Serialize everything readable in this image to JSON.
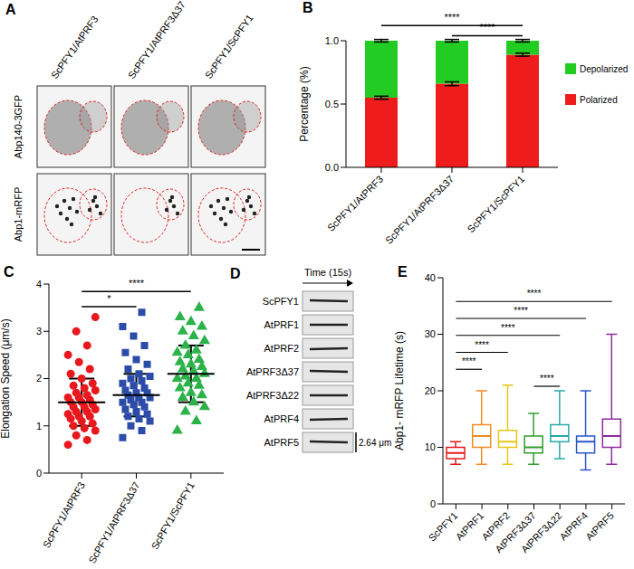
{
  "chart_data": [
    {
      "panel": "B",
      "type": "bar",
      "stacked": true,
      "categories": [
        "ScPFY1/AtPRF3",
        "ScPFY1/AtPRF3Δ37",
        "ScPFY1/ScPFY1"
      ],
      "y_label": "Percentage (%)",
      "ylim": [
        0,
        1
      ],
      "yticks": [
        {
          "value": 0,
          "label": "0.0"
        },
        {
          "value": 0.5,
          "label": "0.5"
        },
        {
          "value": 1,
          "label": "1.0"
        }
      ],
      "series": [
        {
          "name": "Polarized",
          "color": "#ee1c1c",
          "values": [
            0.55,
            0.66,
            0.89
          ],
          "error": [
            0.012,
            0.015,
            0.012
          ]
        },
        {
          "name": "Depolarized",
          "color": "#22cc22",
          "values": [
            0.45,
            0.34,
            0.11
          ],
          "error": [
            0.01,
            0.01,
            0.01
          ]
        }
      ],
      "legend": "right",
      "significance": [
        {
          "from": "ScPFY1/AtPRF3",
          "to": "ScPFY1/ScPFY1",
          "label": "****"
        },
        {
          "from": "ScPFY1/AtPRF3Δ37",
          "to": "ScPFY1/ScPFY1",
          "label": "****"
        }
      ]
    },
    {
      "panel": "C",
      "type": "scatter",
      "categories": [
        "ScPFY1/AtPRF3",
        "ScPFY1/AtPRF3Δ37",
        "ScPFY1/ScPFY1"
      ],
      "y_label": "Elongation Speed (μm/s)",
      "ylim": [
        0,
        4
      ],
      "yticks": [
        0,
        1,
        2,
        3,
        4
      ],
      "groups": [
        {
          "color": "#e8191e",
          "marker": "circle",
          "mean": 1.5,
          "sd": 0.5,
          "values": [
            0.6,
            0.7,
            0.8,
            0.9,
            0.95,
            1.0,
            1.05,
            1.1,
            1.15,
            1.2,
            1.2,
            1.25,
            1.3,
            1.3,
            1.35,
            1.4,
            1.4,
            1.45,
            1.5,
            1.5,
            1.55,
            1.6,
            1.6,
            1.65,
            1.7,
            1.75,
            1.8,
            1.85,
            1.9,
            2.0,
            2.1,
            2.2,
            2.35,
            2.5,
            2.7,
            3.0,
            3.3
          ]
        },
        {
          "color": "#2b4ca8",
          "marker": "square",
          "mean": 1.65,
          "sd": 0.45,
          "values": [
            0.75,
            0.9,
            1.0,
            1.1,
            1.15,
            1.2,
            1.25,
            1.3,
            1.35,
            1.4,
            1.45,
            1.5,
            1.5,
            1.55,
            1.6,
            1.6,
            1.65,
            1.7,
            1.7,
            1.75,
            1.8,
            1.85,
            1.9,
            1.95,
            2.0,
            2.05,
            2.1,
            2.2,
            2.3,
            2.4,
            2.55,
            2.7,
            2.9,
            3.1,
            3.4
          ]
        },
        {
          "color": "#2bb34a",
          "marker": "triangle",
          "mean": 2.1,
          "sd": 0.6,
          "values": [
            0.9,
            1.1,
            1.3,
            1.4,
            1.5,
            1.6,
            1.65,
            1.7,
            1.8,
            1.85,
            1.9,
            2.0,
            2.0,
            2.05,
            2.1,
            2.15,
            2.2,
            2.25,
            2.3,
            2.35,
            2.4,
            2.5,
            2.55,
            2.6,
            2.7,
            2.8,
            2.9,
            3.0,
            3.1,
            3.2,
            3.3,
            3.5
          ]
        }
      ],
      "significance": [
        {
          "from": "ScPFY1/AtPRF3",
          "to": "ScPFY1/AtPRF3Δ37",
          "label": "*"
        },
        {
          "from": "ScPFY1/AtPRF3",
          "to": "ScPFY1/ScPFY1",
          "label": "****"
        }
      ]
    },
    {
      "panel": "E",
      "type": "box",
      "categories": [
        "ScPFY1",
        "AtPRF1",
        "AtPRF2",
        "AtPRF3Δ37",
        "AtPRF3Δ22",
        "AtPRF4",
        "AtPRF5"
      ],
      "y_label": "Abp1- mRFP Lifetime (s)",
      "ylim": [
        0,
        40
      ],
      "yticks": [
        0,
        10,
        20,
        30,
        40
      ],
      "colors": [
        "#e41a1c",
        "#f08a24",
        "#e6c619",
        "#2e9e2e",
        "#27a8a8",
        "#2a55c9",
        "#8e2c9e"
      ],
      "boxes": [
        {
          "min": 7,
          "q1": 8,
          "median": 9,
          "q3": 10,
          "max": 11
        },
        {
          "min": 7,
          "q1": 10,
          "median": 12,
          "q3": 14,
          "max": 20
        },
        {
          "min": 7,
          "q1": 10,
          "median": 11,
          "q3": 13,
          "max": 21
        },
        {
          "min": 7,
          "q1": 9,
          "median": 10,
          "q3": 12,
          "max": 16
        },
        {
          "min": 8,
          "q1": 11,
          "median": 12,
          "q3": 14,
          "max": 20
        },
        {
          "min": 6,
          "q1": 9,
          "median": 11,
          "q3": 12,
          "max": 20
        },
        {
          "min": 7,
          "q1": 10,
          "median": 12,
          "q3": 15,
          "max": 30
        }
      ],
      "significance": [
        {
          "from": "AtPRF3Δ37",
          "to": "AtPRF3Δ22",
          "label": "****"
        },
        {
          "from": "ScPFY1",
          "to": "AtPRF1",
          "label": "****"
        },
        {
          "from": "ScPFY1",
          "to": "AtPRF2",
          "label": "****"
        },
        {
          "from": "ScPFY1",
          "to": "AtPRF3Δ22",
          "label": "****"
        },
        {
          "from": "ScPFY1",
          "to": "AtPRF4",
          "label": "****"
        },
        {
          "from": "ScPFY1",
          "to": "AtPRF5",
          "label": "****"
        }
      ]
    }
  ],
  "images": [
    {
      "panel": "A",
      "columns": [
        "ScPFY1/AtPRF3",
        "ScPFY1/AtPRF3Δ37",
        "ScPFY1/ScPFY1"
      ],
      "rows": [
        "Abp140-3GFP",
        "Abp1-mRFP"
      ]
    },
    {
      "panel": "D",
      "time_label": "Time (15s)",
      "rows": [
        "ScPFY1",
        "AtPRF1",
        "AtPRF2",
        "AtPRF3Δ37",
        "AtPRF3Δ22",
        "AtPRF4",
        "AtPRF5"
      ],
      "scale_label": "2.64 μm"
    }
  ]
}
